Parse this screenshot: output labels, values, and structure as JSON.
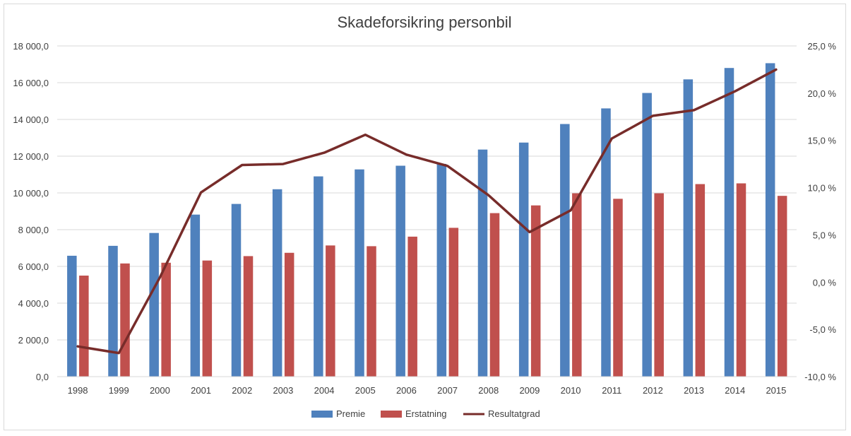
{
  "chart_data": {
    "type": "bar",
    "title": "Skadeforsikring personbil",
    "categories": [
      "1998",
      "1999",
      "2000",
      "2001",
      "2002",
      "2003",
      "2004",
      "2005",
      "2006",
      "2007",
      "2008",
      "2009",
      "2010",
      "2011",
      "2012",
      "2013",
      "2014",
      "2015"
    ],
    "series": [
      {
        "name": "Premie",
        "type": "bar",
        "axis": "left",
        "color": "#4f81bd",
        "values": [
          6580,
          7120,
          7820,
          8820,
          9400,
          10200,
          10900,
          11280,
          11480,
          11580,
          12360,
          12740,
          13750,
          14600,
          15440,
          16180,
          16800,
          17060
        ]
      },
      {
        "name": "Erstatning",
        "type": "bar",
        "axis": "left",
        "color": "#c0504d",
        "values": [
          5500,
          6160,
          6200,
          6320,
          6560,
          6740,
          7140,
          7100,
          7620,
          8100,
          8900,
          9320,
          9980,
          9680,
          9980,
          10480,
          10520,
          9840
        ]
      },
      {
        "name": "Resultatgrad",
        "type": "line",
        "axis": "right",
        "color": "#772c2a",
        "values": [
          -6.8,
          -7.5,
          0.5,
          9.5,
          12.4,
          12.5,
          13.7,
          15.6,
          13.5,
          12.3,
          9.2,
          5.3,
          7.6,
          15.2,
          17.6,
          18.2,
          20.2,
          22.5
        ]
      }
    ],
    "y_left": {
      "min": 0,
      "max": 18000,
      "ticks": [
        "0,0",
        "2 000,0",
        "4 000,0",
        "6 000,0",
        "8 000,0",
        "10 000,0",
        "12 000,0",
        "14 000,0",
        "16 000,0",
        "18 000,0"
      ]
    },
    "y_right": {
      "min": -10,
      "max": 25,
      "ticks": [
        "-10,0 %",
        "-5,0 %",
        "0,0 %",
        "5,0 %",
        "10,0 %",
        "15,0 %",
        "20,0 %",
        "25,0 %"
      ]
    },
    "grid": true,
    "legend_position": "bottom"
  }
}
